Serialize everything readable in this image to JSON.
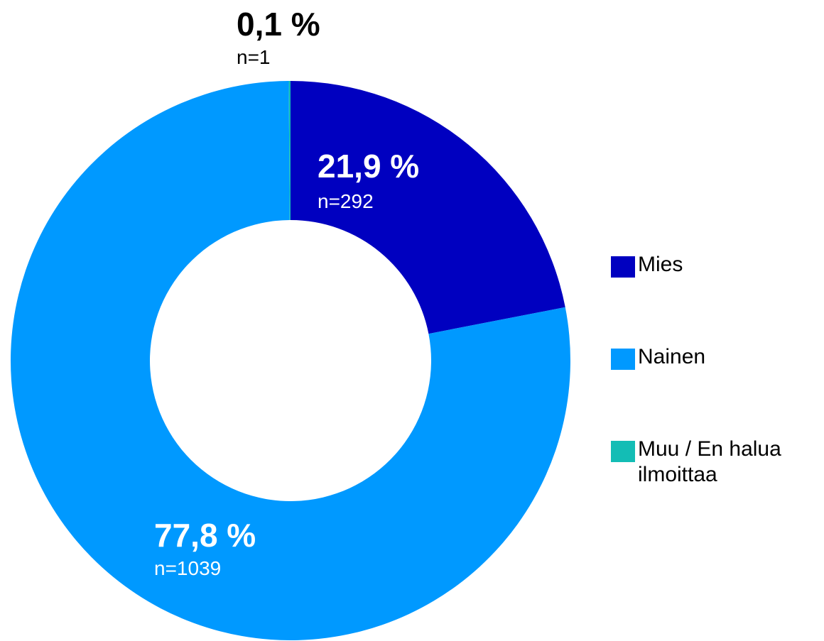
{
  "chart_data": {
    "type": "donut",
    "categories": [
      "Mies",
      "Nainen",
      "Muu / En halua ilmoittaa"
    ],
    "values": [
      21.9,
      77.8,
      0.1
    ],
    "value_labels": [
      "21,9 %",
      "77,8 %",
      "0,1 %"
    ],
    "count_labels": [
      "n=292",
      "n=1039",
      "n=1"
    ],
    "colors": [
      "#0000c0",
      "#0099ff",
      "#13bdb5"
    ],
    "legend": "right"
  }
}
